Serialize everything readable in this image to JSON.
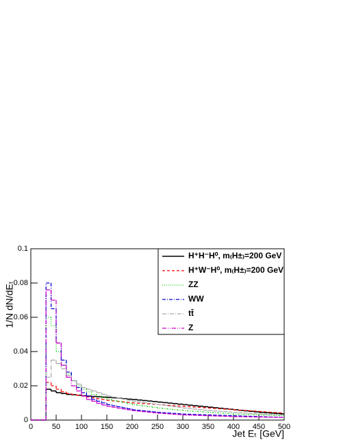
{
  "chart_data": {
    "type": "histogram",
    "x_label": "Jet Eₜ [GeV]",
    "y_label": "1/N dN/dEₜ",
    "bins": [
      0,
      10,
      20,
      30,
      40,
      50,
      60,
      70,
      80,
      90,
      100,
      110,
      120,
      130,
      140,
      150,
      160,
      170,
      180,
      190,
      200,
      210,
      220,
      230,
      240,
      250,
      260,
      270,
      280,
      290,
      300,
      310,
      320,
      330,
      340,
      350,
      360,
      370,
      380,
      390,
      400,
      410,
      420,
      430,
      440,
      450,
      460,
      470,
      480,
      490,
      500
    ],
    "xlim": [
      0,
      500
    ],
    "xticks": [
      0,
      50,
      100,
      150,
      200,
      250,
      300,
      350,
      400,
      450,
      500
    ],
    "ylim": [
      0,
      0.1
    ],
    "yticks": [
      0,
      0.02,
      0.04,
      0.06,
      0.08,
      0.1
    ],
    "legend": "top-right",
    "series": [
      {
        "name": "H⁺H⁻H⁰, m₍H±₎=200 GeV",
        "color": "#000000",
        "dash": "none",
        "width": 1.6,
        "values": [
          0,
          0,
          0,
          0.018,
          0.017,
          0.016,
          0.0155,
          0.015,
          0.0148,
          0.0145,
          0.0142,
          0.014,
          0.0138,
          0.0136,
          0.0134,
          0.0132,
          0.013,
          0.0128,
          0.0125,
          0.0122,
          0.012,
          0.0117,
          0.0114,
          0.0111,
          0.0108,
          0.0105,
          0.0102,
          0.0099,
          0.0096,
          0.0093,
          0.009,
          0.0087,
          0.0084,
          0.0081,
          0.0078,
          0.0075,
          0.0072,
          0.0069,
          0.0066,
          0.0063,
          0.006,
          0.0057,
          0.0054,
          0.0051,
          0.0048,
          0.0045,
          0.0043,
          0.0041,
          0.0039,
          0.0037
        ]
      },
      {
        "name": "H⁺W⁻H⁰, m₍H±₎=200 GeV",
        "color": "#ff0000",
        "dash": "4,3",
        "width": 1.3,
        "values": [
          0,
          0,
          0,
          0.022,
          0.02,
          0.018,
          0.0165,
          0.0155,
          0.015,
          0.0145,
          0.014,
          0.0135,
          0.013,
          0.0125,
          0.012,
          0.0115,
          0.0112,
          0.0109,
          0.0106,
          0.0103,
          0.01,
          0.0098,
          0.0096,
          0.0094,
          0.0092,
          0.009,
          0.0088,
          0.0086,
          0.0084,
          0.0082,
          0.008,
          0.0078,
          0.0076,
          0.0074,
          0.0072,
          0.007,
          0.0068,
          0.0066,
          0.0064,
          0.0062,
          0.006,
          0.0058,
          0.0056,
          0.0054,
          0.0052,
          0.005,
          0.0048,
          0.0046,
          0.0044,
          0.0042
        ]
      },
      {
        "name": "ZZ",
        "color": "#00cc00",
        "dash": "1,2",
        "width": 1.3,
        "values": [
          0,
          0,
          0,
          0.06,
          0.055,
          0.04,
          0.032,
          0.027,
          0.023,
          0.02,
          0.018,
          0.0165,
          0.015,
          0.014,
          0.013,
          0.012,
          0.0114,
          0.0108,
          0.0102,
          0.0096,
          0.009,
          0.0086,
          0.0082,
          0.0078,
          0.0074,
          0.007,
          0.0067,
          0.0064,
          0.0061,
          0.0058,
          0.0055,
          0.0053,
          0.0051,
          0.0049,
          0.0047,
          0.0045,
          0.0043,
          0.0041,
          0.0039,
          0.0037,
          0.0035,
          0.0034,
          0.0033,
          0.0032,
          0.0031,
          0.003,
          0.0029,
          0.0028,
          0.0027,
          0.0026
        ]
      },
      {
        "name": "WW",
        "color": "#0000cc",
        "dash": "5,2,1,2",
        "width": 1.3,
        "values": [
          0,
          0,
          0,
          0.08,
          0.065,
          0.045,
          0.035,
          0.028,
          0.023,
          0.019,
          0.016,
          0.014,
          0.012,
          0.011,
          0.01,
          0.009,
          0.0084,
          0.0078,
          0.0072,
          0.0066,
          0.006,
          0.0057,
          0.0054,
          0.0051,
          0.0048,
          0.0045,
          0.0043,
          0.0041,
          0.0039,
          0.0037,
          0.0035,
          0.0034,
          0.0033,
          0.0032,
          0.0031,
          0.003,
          0.0029,
          0.0028,
          0.0027,
          0.0026,
          0.0025,
          0.0024,
          0.0023,
          0.0022,
          0.0021,
          0.002,
          0.0019,
          0.0018,
          0.0017,
          0.0016
        ]
      },
      {
        "name": "tt̄",
        "color": "#aaaaaa",
        "dash": "6,2,1,2",
        "width": 1.3,
        "values": [
          0,
          0,
          0,
          0.025,
          0.035,
          0.033,
          0.03,
          0.026,
          0.023,
          0.021,
          0.019,
          0.018,
          0.017,
          0.016,
          0.015,
          0.014,
          0.0134,
          0.0128,
          0.0122,
          0.0116,
          0.011,
          0.0106,
          0.0102,
          0.0098,
          0.0094,
          0.009,
          0.0086,
          0.0082,
          0.0078,
          0.0074,
          0.007,
          0.0067,
          0.0064,
          0.0061,
          0.0058,
          0.0055,
          0.0053,
          0.0051,
          0.0049,
          0.0047,
          0.0045,
          0.0043,
          0.0041,
          0.0039,
          0.0037,
          0.0035,
          0.0034,
          0.0033,
          0.0032,
          0.0031
        ]
      },
      {
        "name": "Z",
        "color": "#cc00cc",
        "dash": "6,2,1,2,1,2",
        "width": 1.3,
        "values": [
          0,
          0,
          0,
          0.076,
          0.07,
          0.045,
          0.032,
          0.025,
          0.02,
          0.017,
          0.014,
          0.012,
          0.011,
          0.0098,
          0.0088,
          0.008,
          0.0075,
          0.007,
          0.0065,
          0.006,
          0.0055,
          0.0052,
          0.0049,
          0.0046,
          0.0043,
          0.004,
          0.0038,
          0.0036,
          0.0034,
          0.0032,
          0.003,
          0.0029,
          0.0028,
          0.0027,
          0.0026,
          0.0025,
          0.0024,
          0.0023,
          0.0022,
          0.0021,
          0.002,
          0.002,
          0.0019,
          0.0019,
          0.0018,
          0.0018,
          0.0017,
          0.0017,
          0.0016,
          0.0016
        ]
      }
    ]
  }
}
